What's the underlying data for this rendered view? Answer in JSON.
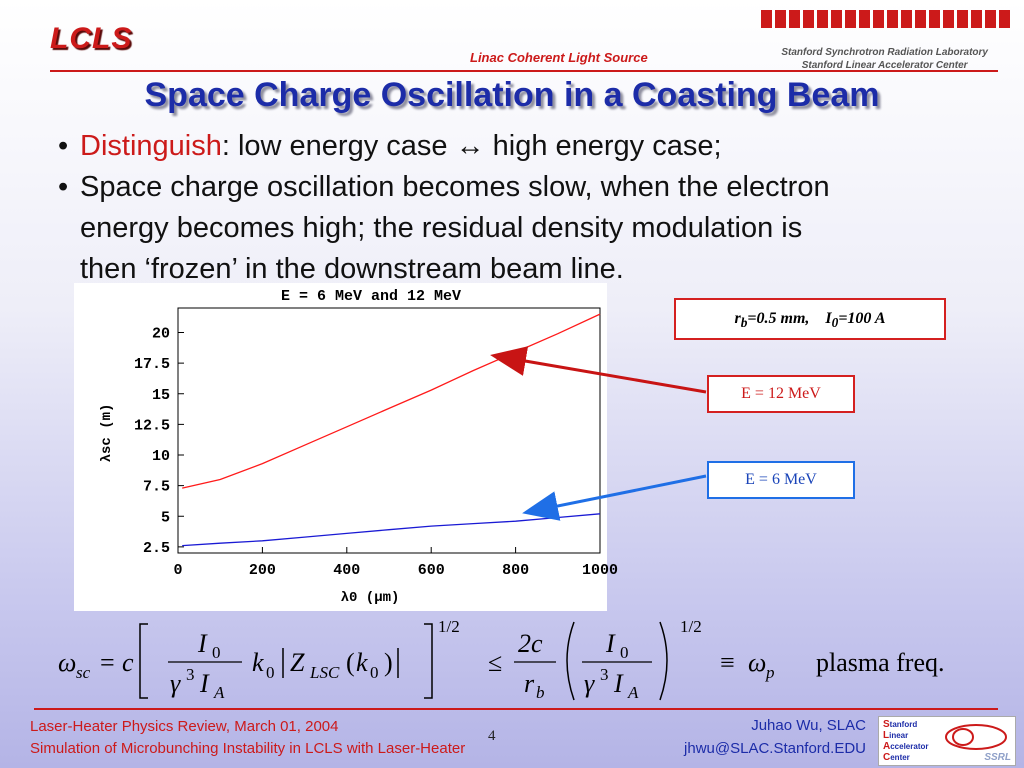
{
  "header": {
    "logo": "LCLS",
    "tagline": "Linac Coherent Light Source",
    "org_line1": "Stanford Synchrotron Radiation Laboratory",
    "org_line2": "Stanford Linear Accelerator Center"
  },
  "title": "Space Charge Oscillation in a Coasting Beam",
  "bullets": {
    "b1_red": "Distinguish",
    "b1_rest": ": low energy case ↔ high energy case;",
    "b2_line1": "Space charge oscillation becomes slow, when the electron",
    "b2_line2": "energy becomes high; the residual density modulation is",
    "b2_line3": "then ‘frozen’ in the downstream beam line."
  },
  "chart_data": {
    "type": "line",
    "title": "E = 6 MeV and 12 MeV",
    "xlabel": "λ0 (μm)",
    "ylabel": "λsc (m)",
    "xlim": [
      0,
      1000
    ],
    "ylim": [
      2.0,
      22.0
    ],
    "x_ticks": [
      "0",
      "200",
      "400",
      "600",
      "800",
      "1000"
    ],
    "y_ticks": [
      "2.5",
      "5",
      "7.5",
      "10",
      "12.5",
      "15",
      "17.5",
      "20"
    ],
    "x": [
      10,
      100,
      200,
      300,
      400,
      500,
      600,
      700,
      800,
      900,
      1000
    ],
    "series": [
      {
        "name": "E = 12 MeV",
        "color": "#ff1a1a",
        "values": [
          7.3,
          8.0,
          9.3,
          10.8,
          12.3,
          13.8,
          15.3,
          16.9,
          18.4,
          19.9,
          21.5
        ]
      },
      {
        "name": "E = 6 MeV",
        "color": "#1a1ad4",
        "values": [
          2.6,
          2.8,
          3.0,
          3.3,
          3.6,
          3.9,
          4.2,
          4.4,
          4.6,
          4.9,
          5.2
        ]
      }
    ],
    "grid": false
  },
  "params": {
    "rb_sym": "r",
    "rb_sub": "b",
    "rb_val": "=0.5 mm,",
    "i0_sym": "I",
    "i0_sub": "0",
    "i0_val": "=100 A"
  },
  "labels": {
    "e12": "E = 12 MeV",
    "e6": "E = 6 MeV"
  },
  "formula": {
    "omega_sc": "ω",
    "sc_sub": "sc",
    "c": "c",
    "I0": "I",
    "zero": "0",
    "gamma": "γ",
    "three": "3",
    "IA": "I",
    "A_sub": "A",
    "k0": "k",
    "Z": "Z",
    "LSC": "LSC",
    "half": "1/2",
    "le": "≤",
    "twoc": "2c",
    "rb": "r",
    "b_sub": "b",
    "equiv": "≡",
    "omega_p": "ω",
    "p_sub": "p",
    "plasma": "plasma freq."
  },
  "footer": {
    "left1": "Laser-Heater Physics Review, March 01, 2004",
    "left2": "Simulation of Microbunching Instability in LCLS with Laser-Heater",
    "page": "4",
    "right1": "Juhao Wu, SLAC",
    "right2": "jhwu@SLAC.Stanford.EDU",
    "logo_s": "S",
    "logo_s_rest": "tanford",
    "logo_l": "L",
    "logo_l_rest": "inear",
    "logo_a": "A",
    "logo_a_rest": "ccelerator",
    "logo_c": "C",
    "logo_c_rest": "enter",
    "ssrl": "SSRL"
  },
  "colors": {
    "accent_red": "#cc1a1a",
    "title_blue": "#1c2ca8",
    "arrow_red": "#c81414",
    "arrow_blue": "#1f6fe6"
  }
}
